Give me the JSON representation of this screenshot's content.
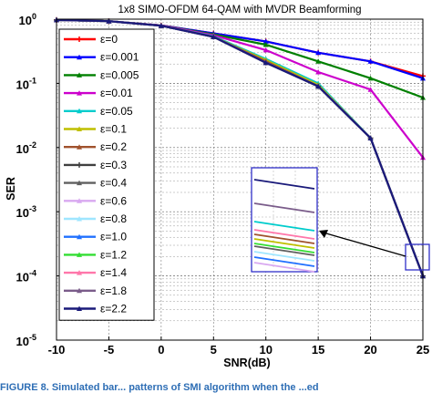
{
  "chart_data": {
    "type": "line",
    "title": "1x8 SIMO-OFDM 64-QAM with MVDR Beamforming",
    "xlabel": "SNR(dB)",
    "ylabel": "SER",
    "x": [
      -10,
      -5,
      0,
      5,
      10,
      15,
      20,
      25
    ],
    "xlim": [
      -10,
      25
    ],
    "ylim": [
      1e-05,
      1
    ],
    "yscale": "log",
    "x_ticks": [
      "-10",
      "-5",
      "0",
      "5",
      "10",
      "15",
      "20",
      "25"
    ],
    "y_ticks": [
      {
        "base": "10",
        "exp": "0",
        "value": 1
      },
      {
        "base": "10",
        "exp": "-1",
        "value": 0.1
      },
      {
        "base": "10",
        "exp": "-2",
        "value": 0.01
      },
      {
        "base": "10",
        "exp": "-3",
        "value": 0.001
      },
      {
        "base": "10",
        "exp": "-4",
        "value": 0.0001
      },
      {
        "base": "10",
        "exp": "-5",
        "value": 1e-05
      }
    ],
    "grid": true,
    "legend_position": "left",
    "series": [
      {
        "name": "ε=0",
        "color": "#ff0000",
        "marker": "plus",
        "values": [
          0.97,
          0.93,
          0.8,
          0.6,
          0.45,
          0.3,
          0.22,
          0.13
        ]
      },
      {
        "name": "ε=0.001",
        "color": "#0000ff",
        "marker": "triangle",
        "values": [
          0.97,
          0.93,
          0.8,
          0.6,
          0.45,
          0.3,
          0.22,
          0.12
        ]
      },
      {
        "name": "ε=0.005",
        "color": "#008000",
        "marker": "triangle",
        "values": [
          0.97,
          0.93,
          0.8,
          0.58,
          0.4,
          0.22,
          0.12,
          0.06
        ]
      },
      {
        "name": "ε=0.01",
        "color": "#cc00cc",
        "marker": "triangle",
        "values": [
          0.97,
          0.93,
          0.8,
          0.56,
          0.33,
          0.15,
          0.08,
          0.007
        ]
      },
      {
        "name": "ε=0.05",
        "color": "#00cccc",
        "marker": "triangle",
        "values": [
          0.97,
          0.93,
          0.79,
          0.54,
          0.24,
          0.1,
          0.014,
          0.0001
        ]
      },
      {
        "name": "ε=0.1",
        "color": "#bfbf00",
        "marker": "triangle",
        "values": [
          0.97,
          0.93,
          0.79,
          0.53,
          0.23,
          0.095,
          0.014,
          0.0001
        ]
      },
      {
        "name": "ε=0.2",
        "color": "#a0522d",
        "marker": "triangle",
        "values": [
          0.97,
          0.93,
          0.79,
          0.53,
          0.22,
          0.09,
          0.014,
          0.0001
        ]
      },
      {
        "name": "ε=0.3",
        "color": "#404040",
        "marker": "plus",
        "values": [
          0.97,
          0.93,
          0.79,
          0.53,
          0.21,
          0.09,
          0.014,
          0.0001
        ]
      },
      {
        "name": "ε=0.4",
        "color": "#606060",
        "marker": "triangle",
        "values": [
          0.97,
          0.93,
          0.79,
          0.53,
          0.21,
          0.09,
          0.014,
          0.0001
        ]
      },
      {
        "name": "ε=0.6",
        "color": "#d8a8f0",
        "marker": "triangle",
        "values": [
          0.97,
          0.93,
          0.79,
          0.53,
          0.21,
          0.09,
          0.014,
          0.0001
        ]
      },
      {
        "name": "ε=0.8",
        "color": "#9fe6ff",
        "marker": "triangle",
        "values": [
          0.97,
          0.93,
          0.79,
          0.53,
          0.21,
          0.09,
          0.014,
          0.0001
        ]
      },
      {
        "name": "ε=1.0",
        "color": "#2070ff",
        "marker": "triangle",
        "values": [
          0.97,
          0.93,
          0.79,
          0.53,
          0.21,
          0.09,
          0.014,
          0.0001
        ]
      },
      {
        "name": "ε=1.2",
        "color": "#33dd33",
        "marker": "triangle",
        "values": [
          0.97,
          0.93,
          0.79,
          0.53,
          0.21,
          0.09,
          0.014,
          0.0001
        ]
      },
      {
        "name": "ε=1.4",
        "color": "#ff77aa",
        "marker": "triangle",
        "values": [
          0.97,
          0.93,
          0.79,
          0.53,
          0.21,
          0.09,
          0.014,
          0.0001
        ]
      },
      {
        "name": "ε=1.8",
        "color": "#7a5c8a",
        "marker": "triangle",
        "values": [
          0.97,
          0.93,
          0.79,
          0.53,
          0.21,
          0.09,
          0.014,
          0.0001
        ]
      },
      {
        "name": "ε=2.2",
        "color": "#1a1a7a",
        "marker": "triangle",
        "values": [
          0.97,
          0.93,
          0.79,
          0.53,
          0.21,
          0.09,
          0.014,
          0.0001
        ]
      }
    ],
    "inset": {
      "border_color": "#2f2fc8",
      "line_colors": [
        "#1a1a7a",
        "#7a5c8a",
        "#00cccc",
        "#ff77aa",
        "#a0522d",
        "#bfbf00",
        "#33dd33",
        "#606060",
        "#9fe6ff",
        "#2070ff",
        "#d8a8f0"
      ]
    },
    "caption": "FIGURE 8.  Simulated bar... patterns of SMI algorithm when the ...ed"
  }
}
